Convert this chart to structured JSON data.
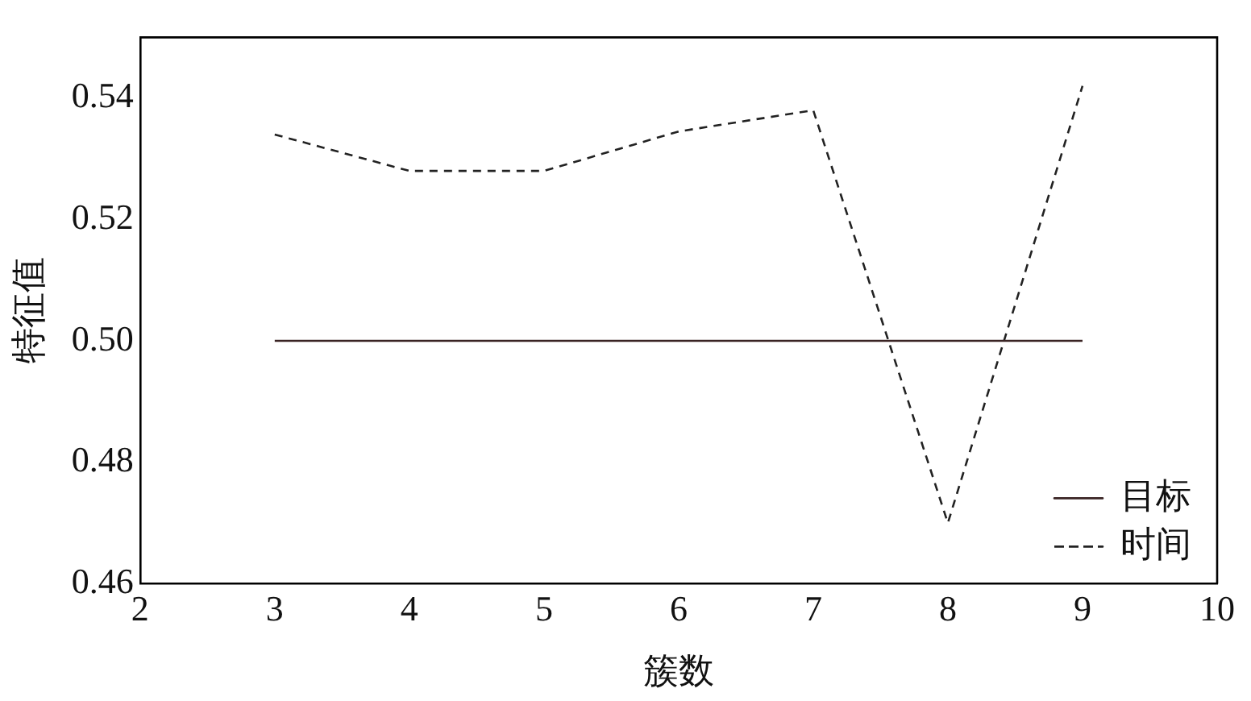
{
  "chart_data": {
    "type": "line",
    "xlabel": "簇数",
    "ylabel": "特征值",
    "x": [
      3,
      4,
      5,
      6,
      7,
      8,
      9
    ],
    "series": [
      {
        "name": "目标",
        "color": "#3a2424",
        "line_style": "solid",
        "values": [
          0.5,
          0.5,
          0.5,
          0.5,
          0.5,
          0.5,
          0.5
        ]
      },
      {
        "name": "时间",
        "color": "#222222",
        "line_style": "dashed",
        "values": [
          0.534,
          0.528,
          0.528,
          0.5345,
          0.538,
          0.47,
          0.542
        ]
      }
    ],
    "xlim": [
      2,
      10
    ],
    "xticks": [
      2,
      3,
      4,
      5,
      6,
      7,
      8,
      9,
      10
    ],
    "ylim": [
      0.46,
      0.55
    ],
    "yticks": [
      0.46,
      0.48,
      {
        "value": 0.5,
        "label": "0.50"
      },
      0.52,
      0.54
    ],
    "grid": false,
    "legend": "bottom right",
    "marker": "none"
  }
}
